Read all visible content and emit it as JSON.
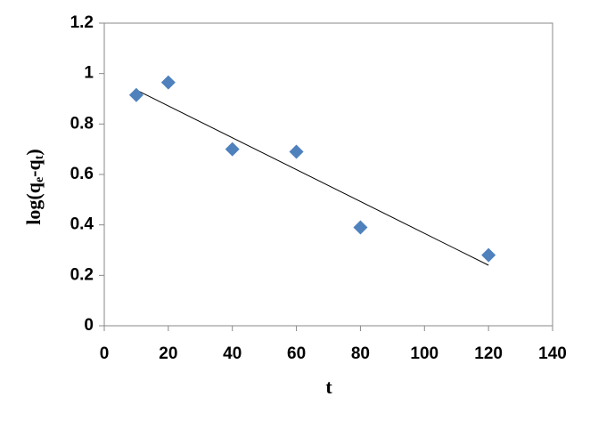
{
  "chart_data": {
    "type": "scatter",
    "x_label": "t",
    "y_label_parts": [
      "log(q",
      "e",
      "-q",
      "t",
      ")"
    ],
    "x": [
      10,
      20,
      40,
      60,
      80,
      120
    ],
    "values": [
      0.915,
      0.965,
      0.7,
      0.69,
      0.39,
      0.28
    ],
    "color": "#4f81bd",
    "trendline": {
      "x": [
        10,
        120
      ],
      "values": [
        0.935,
        0.24
      ],
      "color": "#000000"
    },
    "xlim": [
      0,
      140
    ],
    "xticks": [
      0,
      20,
      40,
      60,
      80,
      100,
      120,
      140
    ],
    "ylim": [
      0,
      1.2
    ],
    "yticks": [
      0,
      0.2,
      0.4,
      0.6,
      0.8,
      1,
      1.2
    ]
  }
}
